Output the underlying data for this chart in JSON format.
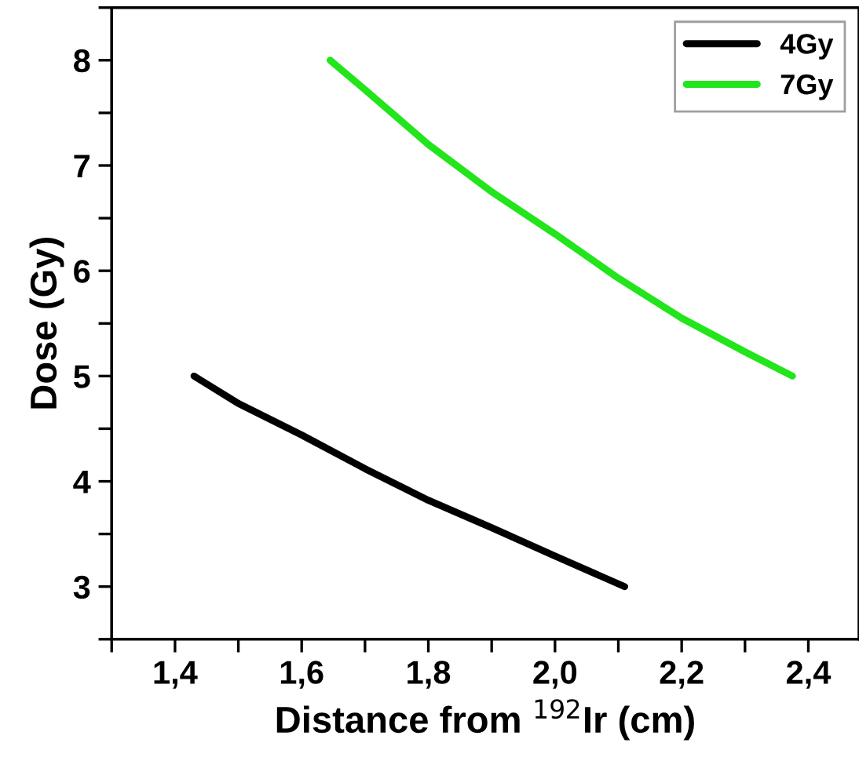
{
  "chart_data": {
    "type": "line",
    "xlabel": "Distance from $^{192}$Ir (cm)",
    "ylabel": "Dose (Gy)",
    "xlim": [
      1.3,
      2.48
    ],
    "ylim": [
      2.5,
      8.5
    ],
    "xticks": [
      {
        "value": 1.3,
        "label": null
      },
      {
        "value": 1.4,
        "label": "1,4"
      },
      {
        "value": 1.5,
        "label": null
      },
      {
        "value": 1.6,
        "label": "1,6"
      },
      {
        "value": 1.7,
        "label": null
      },
      {
        "value": 1.8,
        "label": "1,8"
      },
      {
        "value": 1.9,
        "label": null
      },
      {
        "value": 2.0,
        "label": "2,0"
      },
      {
        "value": 2.1,
        "label": null
      },
      {
        "value": 2.2,
        "label": "2,2"
      },
      {
        "value": 2.3,
        "label": null
      },
      {
        "value": 2.4,
        "label": "2,4"
      }
    ],
    "yticks": [
      {
        "value": 2.5,
        "label": null
      },
      3,
      {
        "value": 3.5,
        "label": null
      },
      4,
      {
        "value": 4.5,
        "label": null
      },
      5,
      {
        "value": 5.5,
        "label": null
      },
      6,
      {
        "value": 6.5,
        "label": null
      },
      7,
      {
        "value": 7.5,
        "label": null
      },
      8,
      {
        "value": 8.5,
        "label": null
      }
    ],
    "grid": false,
    "legend": "top right",
    "marker": "none",
    "line_style": "solid",
    "series": [
      {
        "name": "4Gy",
        "color": "#000000",
        "x": [
          1.43,
          1.5,
          1.6,
          1.7,
          1.8,
          1.9,
          2.0,
          2.11
        ],
        "values": [
          5.0,
          4.74,
          4.44,
          4.12,
          3.82,
          3.56,
          3.29,
          3.0
        ]
      },
      {
        "name": "7Gy",
        "color": "#22e51b",
        "x": [
          1.645,
          1.7,
          1.8,
          1.9,
          2.0,
          2.1,
          2.2,
          2.3,
          2.375
        ],
        "values": [
          8.0,
          7.72,
          7.2,
          6.75,
          6.35,
          5.93,
          5.55,
          5.23,
          5.0
        ]
      }
    ]
  }
}
